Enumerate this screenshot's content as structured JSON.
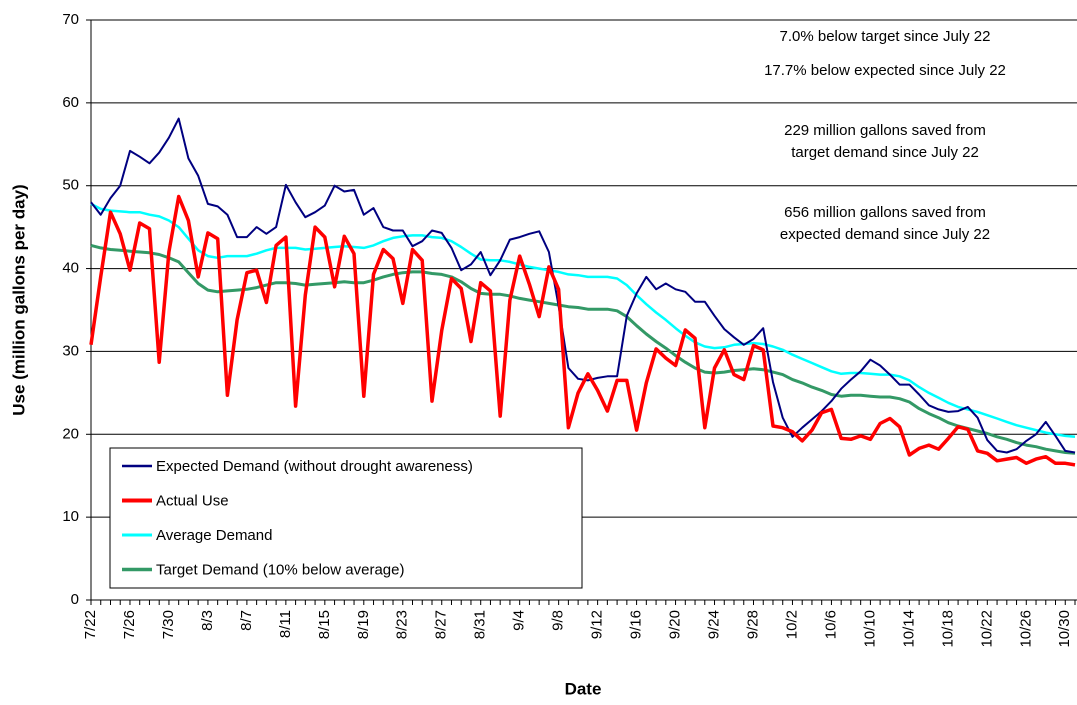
{
  "chart_data": {
    "type": "line",
    "xlabel": "Date",
    "ylabel": "Use (million gallons per day)",
    "ylim": [
      0,
      70
    ],
    "yticks": [
      0,
      10,
      20,
      30,
      40,
      50,
      60,
      70
    ],
    "grid": true,
    "legend": "lower left",
    "annotations": [
      [
        "7.0% below target since July 22"
      ],
      [
        "17.7% below expected since July 22"
      ],
      [
        "229 million gallons saved from",
        "target demand since July 22"
      ],
      [
        "656 million gallons saved from",
        "expected demand since July 22"
      ]
    ],
    "categories": [
      "7/22",
      null,
      null,
      null,
      "7/26",
      null,
      null,
      null,
      "7/30",
      null,
      null,
      null,
      "8/3",
      null,
      null,
      null,
      "8/7",
      null,
      null,
      null,
      "8/11",
      null,
      null,
      null,
      "8/15",
      null,
      null,
      null,
      "8/19",
      null,
      null,
      null,
      "8/23",
      null,
      null,
      null,
      "8/27",
      null,
      null,
      null,
      "8/31",
      null,
      null,
      null,
      "9/4",
      null,
      null,
      null,
      "9/8",
      null,
      null,
      null,
      "9/12",
      null,
      null,
      null,
      "9/16",
      null,
      null,
      null,
      "9/20",
      null,
      null,
      null,
      "9/24",
      null,
      null,
      null,
      "9/28",
      null,
      null,
      null,
      "10/2",
      null,
      null,
      null,
      "10/6",
      null,
      null,
      null,
      "10/10",
      null,
      null,
      null,
      "10/14",
      null,
      null,
      null,
      "10/18",
      null,
      null,
      null,
      "10/22",
      null,
      null,
      null,
      "10/26",
      null,
      null,
      null,
      "10/30",
      null
    ],
    "series": [
      {
        "name": "Expected Demand (without drought awareness)",
        "color": "#000080",
        "width": 2,
        "values": [
          48,
          46.5,
          48.5,
          50,
          54.2,
          53.5,
          52.7,
          54,
          55.8,
          58.1,
          53.3,
          51.2,
          47.8,
          47.5,
          46.5,
          43.8,
          43.8,
          45,
          44.2,
          45,
          50.1,
          48,
          46.2,
          46.8,
          47.6,
          50,
          49.3,
          49.5,
          46.5,
          47.3,
          45,
          44.6,
          44.6,
          42.7,
          43.3,
          44.6,
          44.3,
          42.5,
          39.8,
          40.5,
          42,
          39.2,
          41,
          43.5,
          43.8,
          44.2,
          44.5,
          42,
          35.5,
          28,
          26.7,
          26.5,
          26.8,
          27,
          27,
          34.3,
          37,
          39,
          37.5,
          38.2,
          37.5,
          37.2,
          36,
          36,
          34.3,
          32.7,
          31.7,
          30.8,
          31.5,
          32.8,
          26.3,
          22,
          19.7,
          20.8,
          21.8,
          22.8,
          24,
          25.5,
          26.6,
          27.6,
          29,
          28.3,
          27.2,
          26,
          26,
          24.8,
          23.5,
          23,
          22.7,
          22.8,
          23.3,
          22,
          19.3,
          18,
          17.8,
          18.2,
          19.2,
          20,
          21.5,
          19.8,
          18,
          17.8
        ]
      },
      {
        "name": "Actual Use",
        "color": "#ff0000",
        "width": 3.5,
        "values": [
          30.8,
          39,
          46.8,
          44.2,
          39.8,
          45.5,
          44.8,
          28.7,
          42,
          48.7,
          45.8,
          39,
          44.3,
          43.6,
          24.7,
          33.8,
          39.5,
          39.8,
          35.9,
          42.8,
          43.8,
          23.4,
          36.8,
          45,
          43.8,
          37.8,
          43.9,
          41.8,
          24.6,
          39.3,
          42.3,
          41.2,
          35.8,
          42.3,
          41,
          24,
          32.5,
          38.8,
          37.6,
          31.2,
          38.3,
          37.3,
          22.2,
          36.2,
          41.5,
          38.1,
          34.2,
          40.2,
          37.5,
          20.8,
          25,
          27.3,
          25.3,
          22.8,
          26.5,
          26.5,
          20.5,
          26.2,
          30.3,
          29.2,
          28.3,
          32.6,
          31.6,
          20.8,
          28,
          30.2,
          27.2,
          26.6,
          30.7,
          30.2,
          21,
          20.8,
          20.3,
          19.2,
          20.5,
          22.6,
          23,
          19.5,
          19.4,
          19.8,
          19.4,
          21.3,
          21.9,
          20.9,
          17.5,
          18.3,
          18.7,
          18.2,
          19.5,
          20.9,
          20.6,
          18,
          17.7,
          16.8,
          17,
          17.2,
          16.5,
          17,
          17.3,
          16.5,
          16.5,
          16.3
        ]
      },
      {
        "name": "Average Demand",
        "color": "#00ffff",
        "width": 2.5,
        "values": [
          47.8,
          47.2,
          47,
          46.9,
          46.8,
          46.8,
          46.5,
          46.3,
          45.8,
          45,
          43.6,
          42.2,
          41.5,
          41.3,
          41.5,
          41.5,
          41.5,
          41.8,
          42.2,
          42.5,
          42.5,
          42.5,
          42.3,
          42.4,
          42.5,
          42.6,
          42.7,
          42.6,
          42.5,
          42.8,
          43.3,
          43.7,
          43.9,
          44,
          44,
          43.8,
          43.7,
          43.3,
          42.6,
          41.8,
          41.1,
          41,
          41,
          40.8,
          40.5,
          40.2,
          40,
          39.8,
          39.6,
          39.3,
          39.2,
          39,
          39,
          39,
          38.8,
          38,
          36.8,
          35.7,
          34.7,
          33.8,
          32.8,
          31.9,
          31.1,
          30.6,
          30.4,
          30.5,
          30.8,
          30.9,
          31,
          30.9,
          30.6,
          30.2,
          29.6,
          29.1,
          28.6,
          28.1,
          27.6,
          27.3,
          27.4,
          27.4,
          27.3,
          27.2,
          27.2,
          27,
          26.5,
          25.7,
          25,
          24.4,
          23.8,
          23.3,
          23,
          22.7,
          22.3,
          21.9,
          21.5,
          21.1,
          20.8,
          20.5,
          20.2,
          20,
          19.8,
          19.7
        ]
      },
      {
        "name": "Target Demand (10% below average)",
        "color": "#339966",
        "width": 3,
        "values": [
          42.8,
          42.5,
          42.3,
          42.2,
          42.1,
          42,
          41.9,
          41.7,
          41.3,
          40.8,
          39.5,
          38.2,
          37.4,
          37.2,
          37.3,
          37.4,
          37.5,
          37.7,
          38,
          38.3,
          38.3,
          38.2,
          38,
          38.1,
          38.2,
          38.3,
          38.4,
          38.3,
          38.3,
          38.6,
          39,
          39.3,
          39.5,
          39.6,
          39.6,
          39.4,
          39.3,
          39,
          38.4,
          37.6,
          37,
          36.9,
          36.9,
          36.7,
          36.4,
          36.2,
          36,
          35.8,
          35.6,
          35.4,
          35.3,
          35.1,
          35.1,
          35.1,
          34.9,
          34.2,
          33.1,
          32.1,
          31.2,
          30.4,
          29.5,
          28.7,
          28,
          27.5,
          27.4,
          27.5,
          27.7,
          27.8,
          27.9,
          27.8,
          27.5,
          27.2,
          26.6,
          26.2,
          25.7,
          25.3,
          24.8,
          24.6,
          24.7,
          24.7,
          24.6,
          24.5,
          24.5,
          24.3,
          23.9,
          23.1,
          22.5,
          22,
          21.4,
          21,
          20.7,
          20.4,
          20.1,
          19.7,
          19.4,
          19,
          18.7,
          18.5,
          18.2,
          18,
          17.8,
          17.7
        ]
      }
    ]
  }
}
